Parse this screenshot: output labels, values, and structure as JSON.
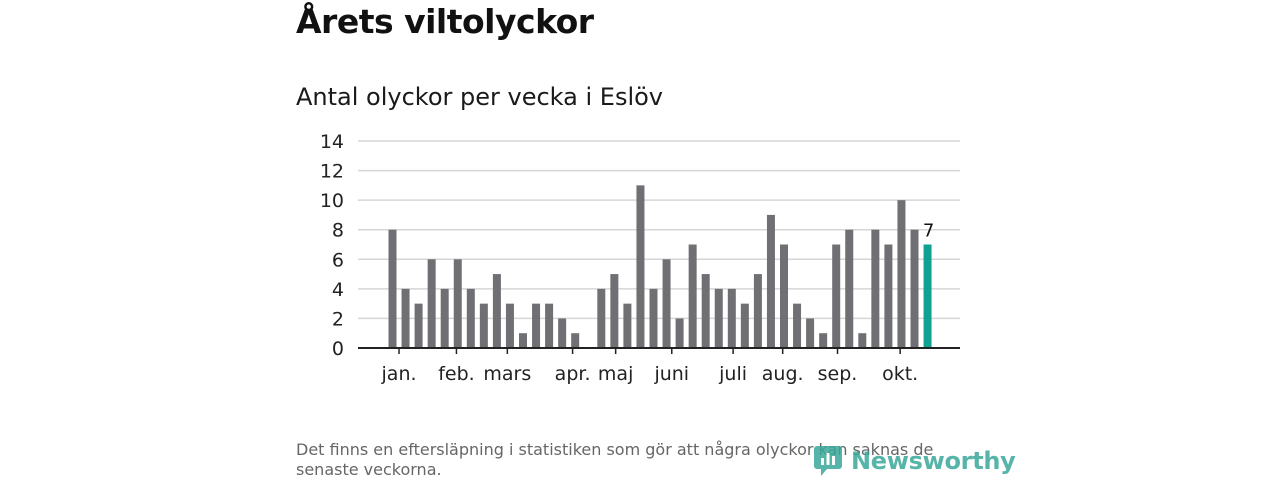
{
  "header": {
    "title": "Årets viltolyckor",
    "subtitle": "Antal olyckor per vecka i Eslöv"
  },
  "chart_data": {
    "type": "bar",
    "title": "Antal olyckor per vecka i Eslöv",
    "xlabel": "",
    "ylabel": "",
    "ylim": [
      0,
      14
    ],
    "yticks": [
      0,
      2,
      4,
      6,
      8,
      10,
      12,
      14
    ],
    "grid": true,
    "week_range": [
      1,
      43
    ],
    "values": [
      8,
      4,
      3,
      6,
      4,
      6,
      4,
      3,
      5,
      3,
      1,
      3,
      3,
      2,
      1,
      0,
      4,
      5,
      3,
      11,
      4,
      6,
      2,
      7,
      5,
      4,
      4,
      3,
      5,
      9,
      7,
      3,
      2,
      1,
      7,
      8,
      1,
      8,
      7,
      10,
      8,
      7
    ],
    "month_ticks": [
      {
        "label": "jan.",
        "week": 1.5
      },
      {
        "label": "feb.",
        "week": 5.9
      },
      {
        "label": "mars",
        "week": 9.8
      },
      {
        "label": "apr.",
        "week": 14.8
      },
      {
        "label": "maj",
        "week": 18.1
      },
      {
        "label": "juni",
        "week": 22.4
      },
      {
        "label": "juli",
        "week": 27.1
      },
      {
        "label": "aug.",
        "week": 30.9
      },
      {
        "label": "sep.",
        "week": 35.1
      },
      {
        "label": "okt.",
        "week": 39.9
      }
    ],
    "highlight": {
      "index": 41,
      "label": "7"
    },
    "colors": {
      "bar": "#706f74",
      "highlight": "#11a191",
      "grid": "#d6d6d6",
      "axis": "#222222"
    }
  },
  "footer": {
    "note": "Det finns en eftersläpning i statistiken som gör att några olyckor kan saknas de senaste veckorna.",
    "brand": "Newsworthy",
    "brand_icon": "newsworthy-logo-icon"
  }
}
